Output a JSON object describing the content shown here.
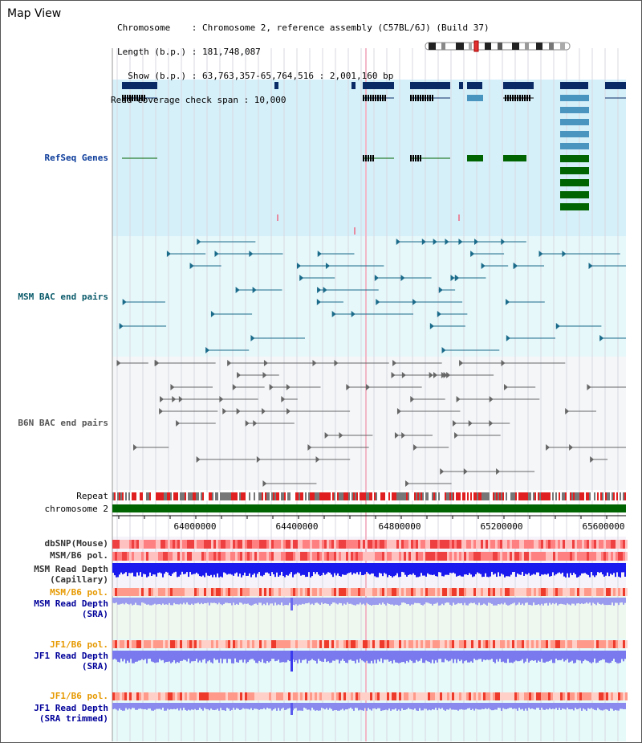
{
  "title": "Map View",
  "header": {
    "chromosome": "Chromosome    : Chromosome 2, reference assembly (C57BL/6J) (Build 37)",
    "length": "Length (b.p.) : 181,748,087",
    "show": "  Show (b.p.) : 63,763,357-65,764,516 : 2,001,160 bp",
    "coverage": "Read coverage check span : 10,000"
  },
  "tracks": {
    "refseq": "RefSeq Genes",
    "msm_bac": "MSM BAC end pairs",
    "b6n_bac": "B6N BAC end pairs",
    "repeat": "Repeat",
    "chromosome": "chromosome 2",
    "dbsnp": "dbSNP(Mouse)",
    "msm_pol1": "MSM/B6 pol.",
    "msm_depth_cap_1": "MSM Read Depth",
    "msm_depth_cap_2": "(Capillary)",
    "msm_pol2": "MSM/B6 pol.",
    "msm_depth_sra_1": "MSM Read Depth",
    "msm_depth_sra_2": "(SRA)",
    "jf1_pol1": "JF1/B6 pol.",
    "jf1_depth_sra_1": "JF1 Read Depth",
    "jf1_depth_sra_2": "(SRA)",
    "jf1_pol2": "JF1/B6 pol.",
    "jf1_depth_trim_1": "JF1 Read Depth",
    "jf1_depth_trim_2": "(SRA trimmed)"
  },
  "axis_ticks": [
    "64000000",
    "64400000",
    "64800000",
    "65200000",
    "65600000"
  ],
  "colors": {
    "refseq_bg": "#d6f0fa",
    "msm_bg": "#e6f8fa",
    "b6n_bg": "#f4f6f8",
    "gene_dark": "#0a2a66",
    "gene_light": "#4a94c0",
    "gene_green": "#006400",
    "msm_pair": "#1a6a8a",
    "b6n_pair": "#666666",
    "chromosome_bar": "#006400",
    "depth_blue": "#1a1aee",
    "depth_light": "#8888ee",
    "label_blue": "#0a3a99",
    "label_teal": "#0a5a6a",
    "label_orange": "#e69900",
    "label_darkblue": "#00009a"
  }
}
